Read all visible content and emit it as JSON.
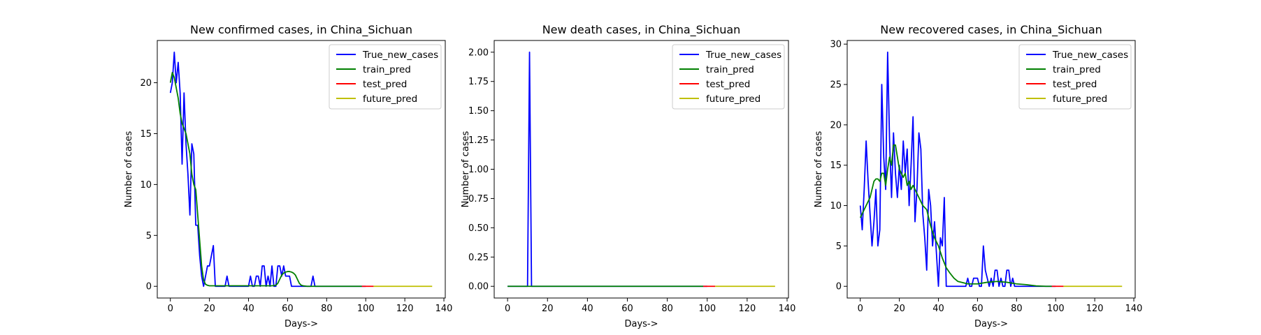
{
  "colors": {
    "True_new_cases": "#0000ff",
    "train_pred": "#008000",
    "test_pred": "#ff0000",
    "future_pred": "#bfbf00"
  },
  "chart_data": [
    {
      "type": "line",
      "title": "New confirmed cases, in China_Sichuan",
      "xlabel": "Days->",
      "ylabel": "Number of cases",
      "xlim": [
        -6.7,
        140.7
      ],
      "ylim": [
        -1.15,
        24.15
      ],
      "xticks": [
        0,
        20,
        40,
        60,
        80,
        100,
        120,
        140
      ],
      "yticks": [
        0,
        5,
        10,
        15,
        20
      ],
      "ytick_labels": [
        "0",
        "5",
        "10",
        "15",
        "20"
      ],
      "legend": {
        "position": "upper right",
        "entries": [
          "True_new_cases",
          "train_pred",
          "test_pred",
          "future_pred"
        ]
      },
      "series": [
        {
          "name": "True_new_cases",
          "x": [
            0,
            1,
            2,
            3,
            4,
            5,
            6,
            7,
            8,
            9,
            10,
            11,
            12,
            13,
            14,
            15,
            16,
            17,
            18,
            19,
            20,
            21,
            22,
            23,
            24,
            25,
            26,
            27,
            28,
            29,
            30,
            31,
            32,
            33,
            34,
            35,
            36,
            37,
            38,
            39,
            40,
            41,
            42,
            43,
            44,
            45,
            46,
            47,
            48,
            49,
            50,
            51,
            52,
            53,
            54,
            55,
            56,
            57,
            58,
            59,
            60,
            61,
            62,
            63,
            64,
            65,
            66,
            67,
            68,
            69,
            70,
            71,
            72,
            73,
            74,
            75,
            76,
            77,
            78,
            79,
            80,
            81,
            82,
            83,
            84,
            85,
            86,
            87,
            88,
            89,
            90,
            91,
            92,
            93,
            94,
            95,
            96,
            97,
            98,
            99,
            100
          ],
          "y": [
            19,
            20,
            23,
            20,
            22,
            19,
            12,
            19,
            14,
            11,
            7,
            14,
            13,
            6,
            6,
            3,
            1,
            0,
            1,
            2,
            2,
            3,
            4,
            0,
            0,
            0,
            0,
            0,
            0,
            1,
            0,
            0,
            0,
            0,
            0,
            0,
            0,
            0,
            0,
            0,
            0,
            1,
            0,
            0,
            1,
            1,
            0,
            2,
            2,
            0,
            1,
            0,
            2,
            0,
            0,
            2,
            2,
            1,
            2,
            1,
            1,
            1,
            0,
            0,
            0,
            0,
            0,
            0,
            0,
            0,
            0,
            0,
            0,
            1,
            0,
            0,
            0,
            0,
            0,
            0,
            0,
            0,
            0,
            0,
            0,
            0,
            0,
            0,
            0,
            0,
            0,
            0,
            0,
            0,
            0,
            0,
            0,
            0,
            0,
            0,
            0
          ]
        },
        {
          "name": "train_pred",
          "x": [
            0,
            1,
            2,
            3,
            4,
            5,
            6,
            7,
            8,
            9,
            10,
            11,
            12,
            13,
            14,
            15,
            16,
            17,
            18,
            19,
            20,
            22,
            25,
            30,
            35,
            40,
            45,
            50,
            52,
            54,
            55,
            56,
            57,
            58,
            59,
            60,
            61,
            62,
            63,
            64,
            65,
            66,
            67,
            68,
            70,
            75,
            80,
            85,
            90,
            95,
            98
          ],
          "y": [
            20,
            21,
            20.5,
            19.5,
            18.5,
            17,
            16,
            15.5,
            15,
            14,
            13,
            11,
            10,
            9.5,
            7,
            4.5,
            2,
            0.6,
            0.2,
            0.1,
            0.05,
            0.05,
            0.05,
            0.05,
            0.05,
            0.05,
            0.05,
            0.05,
            0.05,
            0.1,
            0.3,
            0.7,
            1.1,
            1.3,
            1.4,
            1.45,
            1.45,
            1.4,
            1.3,
            1.1,
            0.7,
            0.3,
            0.1,
            0.05,
            0,
            0,
            0,
            0,
            0,
            0,
            0
          ]
        },
        {
          "name": "test_pred",
          "x": [
            98,
            99,
            100,
            101,
            102,
            103,
            104
          ],
          "y": [
            0,
            0,
            0,
            0,
            0,
            0,
            0
          ]
        },
        {
          "name": "future_pred",
          "x": [
            104,
            134
          ],
          "y": [
            0,
            0
          ]
        }
      ]
    },
    {
      "type": "line",
      "title": "New death cases, in China_Sichuan",
      "xlabel": "Days->",
      "ylabel": "Number of cases",
      "xlim": [
        -6.7,
        140.7
      ],
      "ylim": [
        -0.1,
        2.1
      ],
      "xticks": [
        0,
        20,
        40,
        60,
        80,
        100,
        120,
        140
      ],
      "yticks": [
        0,
        0.25,
        0.5,
        0.75,
        1.0,
        1.25,
        1.5,
        1.75,
        2.0
      ],
      "ytick_labels": [
        "0.00",
        "0.25",
        "0.50",
        "0.75",
        "1.00",
        "1.25",
        "1.50",
        "1.75",
        "2.00"
      ],
      "legend": {
        "position": "upper right",
        "entries": [
          "True_new_cases",
          "train_pred",
          "test_pred",
          "future_pred"
        ]
      },
      "series": [
        {
          "name": "True_new_cases",
          "x": [
            0,
            10,
            11,
            12,
            100
          ],
          "y": [
            0,
            0,
            2,
            0,
            0
          ]
        },
        {
          "name": "train_pred",
          "x": [
            0,
            98
          ],
          "y": [
            0,
            0
          ]
        },
        {
          "name": "test_pred",
          "x": [
            98,
            104
          ],
          "y": [
            0,
            0
          ]
        },
        {
          "name": "future_pred",
          "x": [
            104,
            134
          ],
          "y": [
            0,
            0
          ]
        }
      ]
    },
    {
      "type": "line",
      "title": "New recovered cases, in China_Sichuan",
      "xlabel": "Days->",
      "ylabel": "Number of cases",
      "xlim": [
        -6.7,
        140.7
      ],
      "ylim": [
        -1.45,
        30.45
      ],
      "xticks": [
        0,
        20,
        40,
        60,
        80,
        100,
        120,
        140
      ],
      "yticks": [
        0,
        5,
        10,
        15,
        20,
        25,
        30
      ],
      "ytick_labels": [
        "0",
        "5",
        "10",
        "15",
        "20",
        "25",
        "30"
      ],
      "legend": {
        "position": "upper right",
        "entries": [
          "True_new_cases",
          "train_pred",
          "test_pred",
          "future_pred"
        ]
      },
      "series": [
        {
          "name": "True_new_cases",
          "x": [
            0,
            1,
            2,
            3,
            4,
            5,
            6,
            7,
            8,
            9,
            10,
            11,
            12,
            13,
            14,
            15,
            16,
            17,
            18,
            19,
            20,
            21,
            22,
            23,
            24,
            25,
            26,
            27,
            28,
            29,
            30,
            31,
            32,
            33,
            34,
            35,
            36,
            37,
            38,
            39,
            40,
            41,
            42,
            43,
            44,
            45,
            46,
            47,
            48,
            49,
            50,
            51,
            52,
            53,
            54,
            55,
            56,
            57,
            58,
            59,
            60,
            61,
            62,
            63,
            64,
            65,
            66,
            67,
            68,
            69,
            70,
            71,
            72,
            73,
            74,
            75,
            76,
            77,
            78,
            79,
            80,
            81,
            82,
            83,
            84,
            85,
            86,
            87,
            88,
            89,
            90,
            91,
            92,
            93,
            94,
            95,
            96,
            97,
            98,
            99,
            100
          ],
          "y": [
            10,
            7,
            12,
            18,
            13,
            9,
            5,
            8,
            12,
            5,
            7,
            25,
            16,
            12,
            29,
            18,
            11,
            19,
            14,
            11,
            15,
            12,
            18,
            14,
            17,
            10,
            15,
            21,
            8,
            12,
            19,
            17,
            9,
            6,
            2,
            12,
            10,
            5,
            8,
            4,
            0,
            6,
            5,
            11,
            0,
            0,
            0,
            0,
            0,
            0,
            0,
            0,
            0,
            0,
            0,
            1,
            0,
            0,
            1,
            1,
            1,
            0,
            0,
            5,
            2,
            1,
            0,
            1,
            0,
            2,
            2,
            0,
            1,
            0,
            0,
            2,
            2,
            0,
            1,
            0,
            0,
            0,
            0,
            0,
            0,
            0,
            0,
            0,
            0,
            0,
            0,
            0,
            0,
            0,
            0,
            0,
            0,
            0,
            0,
            0,
            0
          ]
        },
        {
          "name": "train_pred",
          "x": [
            0,
            1,
            2,
            3,
            4,
            5,
            6,
            7,
            8,
            9,
            10,
            11,
            12,
            13,
            14,
            15,
            16,
            17,
            18,
            19,
            20,
            21,
            22,
            23,
            24,
            25,
            26,
            27,
            28,
            30,
            32,
            34,
            36,
            38,
            40,
            42,
            44,
            46,
            48,
            50,
            55,
            60,
            65,
            70,
            75,
            80,
            85,
            90,
            95,
            98
          ],
          "y": [
            8.5,
            9,
            9.5,
            10,
            10.5,
            11,
            12,
            13,
            13.3,
            13.3,
            13,
            14,
            14,
            12.5,
            14.5,
            16,
            15,
            17.5,
            17.5,
            16,
            14.5,
            14,
            13.5,
            14,
            12.5,
            13,
            12,
            12.5,
            12,
            11,
            10,
            9.5,
            7.5,
            6,
            5,
            3.5,
            2.3,
            1.6,
            1,
            0.6,
            0.3,
            0.3,
            0.5,
            0.6,
            0.5,
            0.3,
            0.2,
            0.05,
            0,
            0
          ]
        },
        {
          "name": "test_pred",
          "x": [
            98,
            104
          ],
          "y": [
            0,
            0
          ]
        },
        {
          "name": "future_pred",
          "x": [
            104,
            134
          ],
          "y": [
            0,
            0
          ]
        }
      ]
    }
  ]
}
